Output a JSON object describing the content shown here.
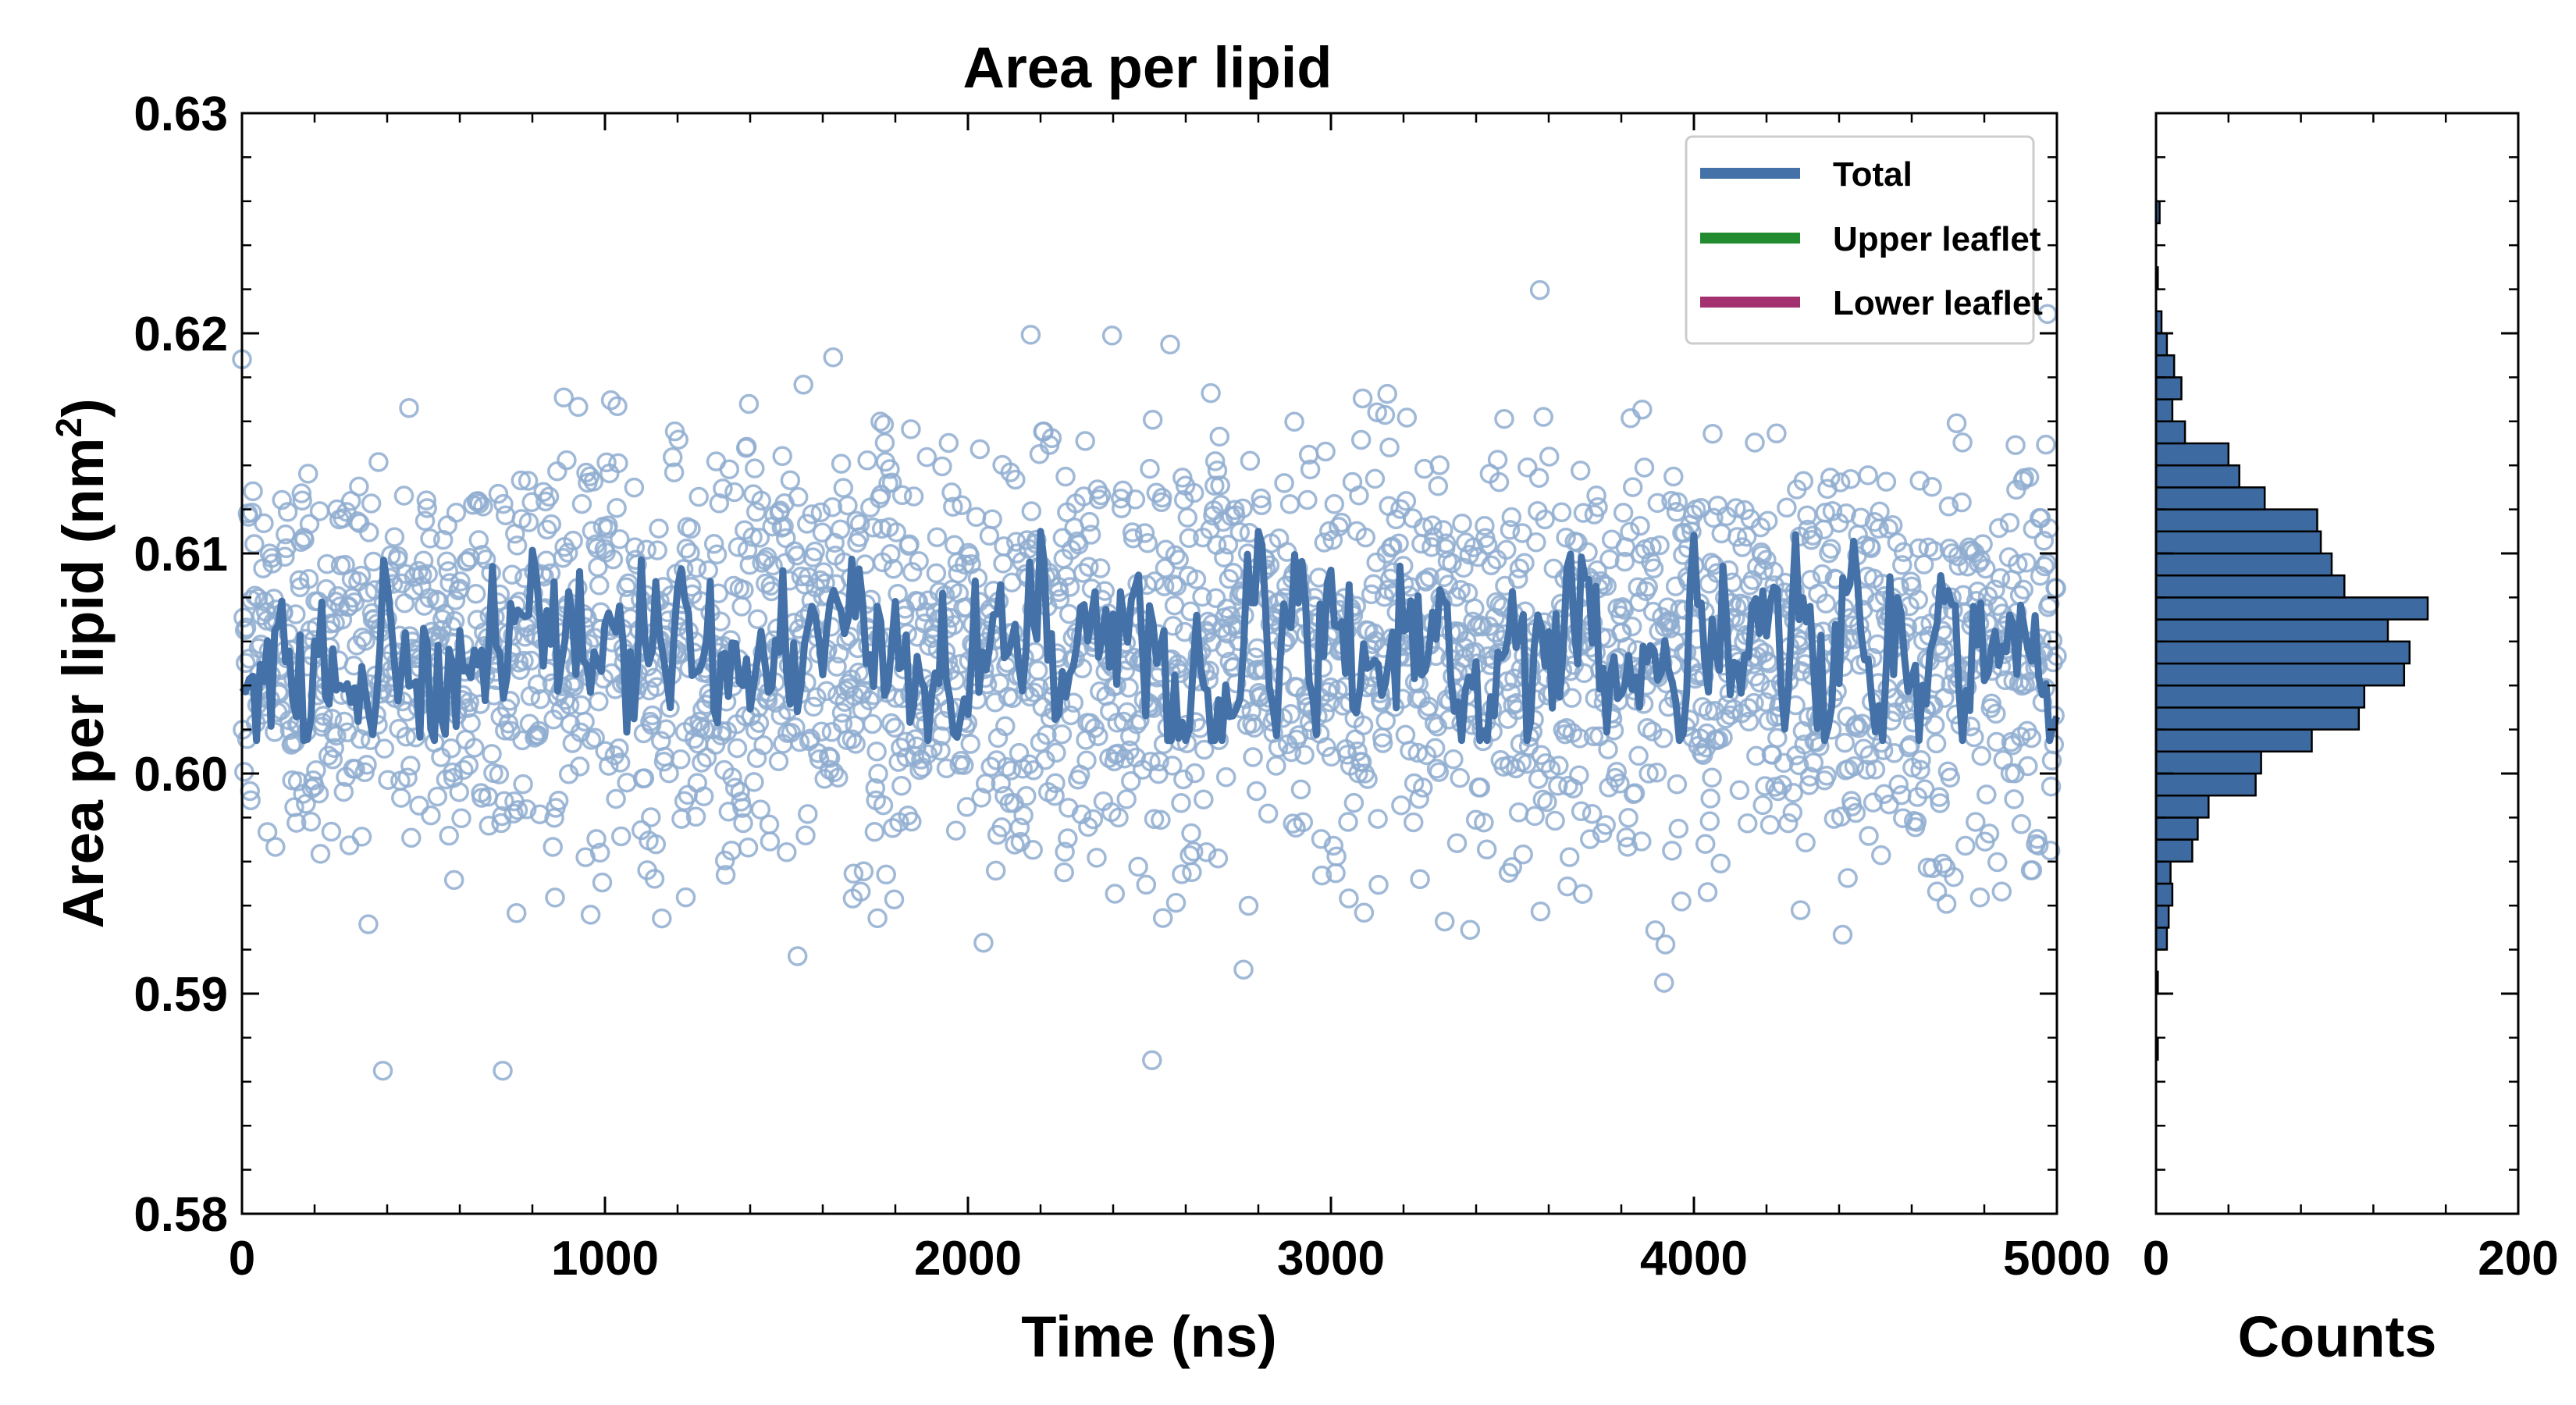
{
  "chart_data": [
    {
      "type": "scatter",
      "title": "Area per lipid",
      "xlabel": "Time (ns)",
      "ylabel_main": "Area per lipid (nm",
      "ylabel_sup": "2",
      "ylabel_close": ")",
      "xlim": [
        0,
        5000
      ],
      "ylim": [
        0.58,
        0.63
      ],
      "xticks": [
        0,
        1000,
        2000,
        3000,
        4000,
        5000
      ],
      "xtick_labels": [
        "0",
        "1000",
        "2000",
        "3000",
        "4000",
        "5000"
      ],
      "yticks": [
        0.58,
        0.59,
        0.6,
        0.61,
        0.62,
        0.63
      ],
      "ytick_labels": [
        "0.58",
        "0.59",
        "0.60",
        "0.61",
        "0.62",
        "0.63"
      ],
      "grid": false,
      "legend_position": "top-right",
      "series": [
        {
          "name": "Total",
          "color": "#4472a8",
          "marker": "line"
        },
        {
          "name": "Upper leaflet",
          "color": "#238b2f",
          "marker": "line"
        },
        {
          "name": "Lower leaflet",
          "color": "#a3306f",
          "marker": "line"
        }
      ],
      "scatter_points": {
        "count": 2500,
        "x_range": [
          0,
          5000
        ],
        "mean": 0.6055,
        "std": 0.0048,
        "color": "#8fadd0",
        "note": "per-frame raw values (open circles)"
      },
      "line_series": {
        "name": "Total",
        "x_step": 10,
        "mean": 0.6055,
        "fluctuation_range": [
          0.6015,
          0.611
        ],
        "color": "#4472a8"
      }
    },
    {
      "type": "bar",
      "orientation": "horizontal",
      "xlabel": "Counts",
      "xlim": [
        0,
        200
      ],
      "xticks": [
        0,
        200
      ],
      "xtick_labels": [
        "0",
        "200"
      ],
      "ylim": [
        0.58,
        0.63
      ],
      "bin_width": 0.001,
      "bar_color": "#3d6aa0",
      "bins": [
        {
          "y0": 0.587,
          "y1": 0.588,
          "count": 1
        },
        {
          "y0": 0.59,
          "y1": 0.591,
          "count": 1
        },
        {
          "y0": 0.592,
          "y1": 0.593,
          "count": 6
        },
        {
          "y0": 0.593,
          "y1": 0.594,
          "count": 7
        },
        {
          "y0": 0.594,
          "y1": 0.595,
          "count": 9
        },
        {
          "y0": 0.595,
          "y1": 0.596,
          "count": 8
        },
        {
          "y0": 0.596,
          "y1": 0.597,
          "count": 20
        },
        {
          "y0": 0.597,
          "y1": 0.598,
          "count": 23
        },
        {
          "y0": 0.598,
          "y1": 0.599,
          "count": 29
        },
        {
          "y0": 0.599,
          "y1": 0.6,
          "count": 55
        },
        {
          "y0": 0.6,
          "y1": 0.601,
          "count": 58
        },
        {
          "y0": 0.601,
          "y1": 0.602,
          "count": 86
        },
        {
          "y0": 0.602,
          "y1": 0.603,
          "count": 112
        },
        {
          "y0": 0.603,
          "y1": 0.604,
          "count": 115
        },
        {
          "y0": 0.604,
          "y1": 0.605,
          "count": 137
        },
        {
          "y0": 0.605,
          "y1": 0.606,
          "count": 140
        },
        {
          "y0": 0.606,
          "y1": 0.607,
          "count": 128
        },
        {
          "y0": 0.607,
          "y1": 0.608,
          "count": 150
        },
        {
          "y0": 0.608,
          "y1": 0.609,
          "count": 104
        },
        {
          "y0": 0.609,
          "y1": 0.61,
          "count": 97
        },
        {
          "y0": 0.61,
          "y1": 0.611,
          "count": 91
        },
        {
          "y0": 0.611,
          "y1": 0.612,
          "count": 89
        },
        {
          "y0": 0.612,
          "y1": 0.613,
          "count": 60
        },
        {
          "y0": 0.613,
          "y1": 0.614,
          "count": 46
        },
        {
          "y0": 0.614,
          "y1": 0.615,
          "count": 40
        },
        {
          "y0": 0.615,
          "y1": 0.616,
          "count": 16
        },
        {
          "y0": 0.616,
          "y1": 0.617,
          "count": 9
        },
        {
          "y0": 0.617,
          "y1": 0.618,
          "count": 14
        },
        {
          "y0": 0.618,
          "y1": 0.619,
          "count": 10
        },
        {
          "y0": 0.619,
          "y1": 0.62,
          "count": 6
        },
        {
          "y0": 0.62,
          "y1": 0.621,
          "count": 3
        },
        {
          "y0": 0.622,
          "y1": 0.623,
          "count": 1
        },
        {
          "y0": 0.625,
          "y1": 0.626,
          "count": 2
        }
      ]
    }
  ]
}
